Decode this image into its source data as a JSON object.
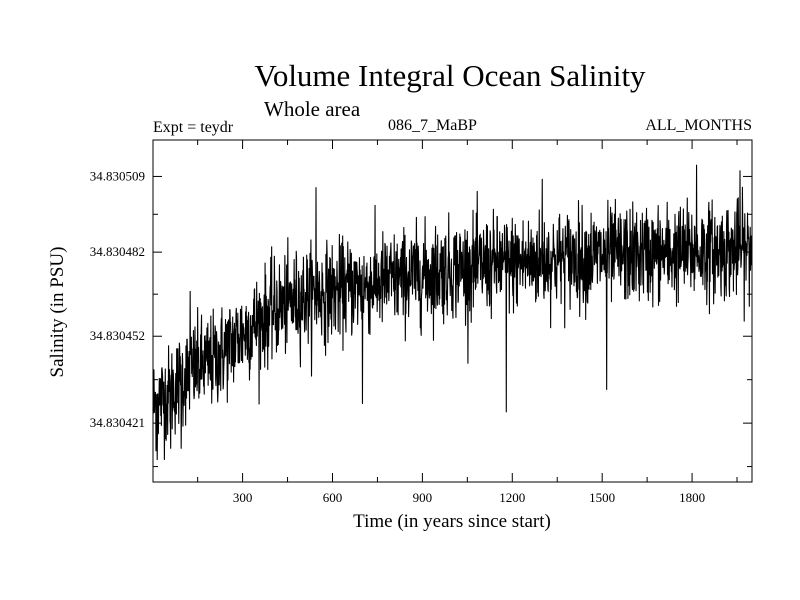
{
  "header": {
    "title": "Volume Integral Ocean Salinity",
    "subtitle": "Whole area",
    "experiment": "Expt = teydr",
    "run_label": "086_7_MaBP",
    "period": "ALL_MONTHS"
  },
  "chart_data": {
    "type": "line",
    "title": "Volume Integral Ocean Salinity",
    "subtitle": "Whole area",
    "xlabel": "Time (in years since start)",
    "ylabel": "Salinity (in PSU)",
    "xlim": [
      1,
      2000
    ],
    "ylim": [
      34.8304,
      34.830522
    ],
    "x_ticks": [
      300,
      600,
      900,
      1200,
      1500,
      1800
    ],
    "y_ticks": [
      34.830421,
      34.830452,
      34.830482,
      34.830509
    ],
    "y_tick_labels": [
      "34.830421",
      "34.830452",
      "34.830482",
      "34.830509"
    ],
    "x_tick_labels": [
      "300",
      "600",
      "900",
      "1200",
      "1500",
      "1800"
    ],
    "series": [
      {
        "name": "Salinity",
        "color": "#000000",
        "trend": {
          "x": [
            1,
            50,
            100,
            150,
            200,
            250,
            300,
            400,
            500,
            600,
            700,
            800,
            900,
            1000,
            1200,
            1400,
            1600,
            1800,
            2000
          ],
          "y": [
            34.830428,
            34.830431,
            34.830437,
            34.830441,
            34.830443,
            34.830448,
            34.830453,
            34.830461,
            34.830466,
            34.830468,
            34.83047,
            34.830472,
            34.830474,
            34.830476,
            34.830478,
            34.83048,
            34.830481,
            34.830482,
            34.830483
          ]
        },
        "noise_std": 8.5e-06,
        "n_points": 2000,
        "extremes": [
          {
            "x": 15,
            "y": 34.830408
          },
          {
            "x": 60,
            "y": 34.830412
          },
          {
            "x": 95,
            "y": 34.830412
          },
          {
            "x": 125,
            "y": 34.830468
          },
          {
            "x": 545,
            "y": 34.830505
          },
          {
            "x": 700,
            "y": 34.830428
          },
          {
            "x": 1180,
            "y": 34.830425
          },
          {
            "x": 1300,
            "y": 34.830508
          },
          {
            "x": 1515,
            "y": 34.830433
          },
          {
            "x": 1815,
            "y": 34.830513
          },
          {
            "x": 1960,
            "y": 34.830511
          }
        ]
      }
    ]
  }
}
